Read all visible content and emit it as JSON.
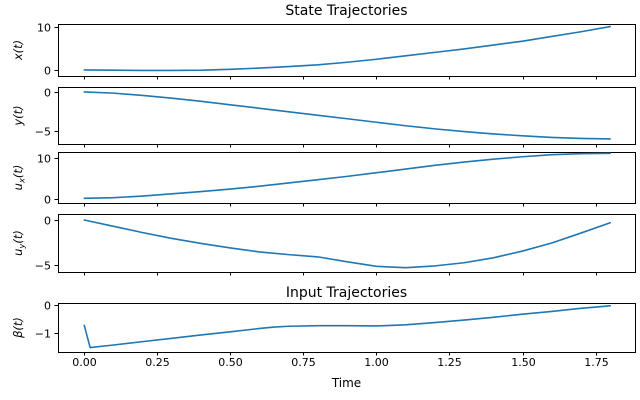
{
  "figure": {
    "title_state": "State Trajectories",
    "title_input": "Input Trajectories",
    "xlabel": "Time",
    "line_color": "#1f77b4",
    "axis_color": "#000000",
    "background": "#ffffff"
  },
  "x_axis": {
    "label": "Time",
    "tick_values": [
      0.0,
      0.25,
      0.5,
      0.75,
      1.0,
      1.25,
      1.5,
      1.75
    ],
    "tick_labels": [
      "0.00",
      "0.25",
      "0.50",
      "0.75",
      "1.00",
      "1.25",
      "1.50",
      "1.75"
    ],
    "xlim": [
      -0.09,
      1.885
    ]
  },
  "chart_data": [
    {
      "type": "line",
      "id": "x",
      "title": "State Trajectories",
      "ylabel": "x(t)",
      "xlim": [
        -0.09,
        1.885
      ],
      "ylim": [
        -1.4,
        10.7
      ],
      "ytick_values": [
        0,
        10
      ],
      "ytick_labels": [
        "0",
        "10"
      ],
      "grid": false,
      "x": [
        0,
        0.1,
        0.2,
        0.3,
        0.4,
        0.5,
        0.6,
        0.7,
        0.8,
        0.9,
        1.0,
        1.1,
        1.2,
        1.3,
        1.4,
        1.5,
        1.6,
        1.7,
        1.8
      ],
      "y": [
        0,
        -0.05,
        -0.1,
        -0.1,
        -0.05,
        0.15,
        0.45,
        0.8,
        1.2,
        1.8,
        2.5,
        3.3,
        4.1,
        4.9,
        5.8,
        6.7,
        7.8,
        8.9,
        10.1
      ]
    },
    {
      "type": "line",
      "id": "y",
      "title": "",
      "ylabel": "y(t)",
      "xlim": [
        -0.09,
        1.885
      ],
      "ylim": [
        -6.7,
        0.64
      ],
      "ytick_values": [
        -5,
        0
      ],
      "ytick_labels": [
        "−5",
        "0"
      ],
      "grid": false,
      "x": [
        0,
        0.1,
        0.2,
        0.3,
        0.4,
        0.5,
        0.6,
        0.7,
        0.8,
        0.9,
        1.0,
        1.1,
        1.2,
        1.3,
        1.4,
        1.5,
        1.6,
        1.7,
        1.8
      ],
      "y": [
        0,
        -0.15,
        -0.45,
        -0.8,
        -1.2,
        -1.65,
        -2.1,
        -2.55,
        -3.0,
        -3.45,
        -3.9,
        -4.35,
        -4.75,
        -5.1,
        -5.4,
        -5.65,
        -5.85,
        -5.98,
        -6.05
      ]
    },
    {
      "type": "line",
      "id": "ux",
      "title": "",
      "ylabel": "u_x(t)",
      "xlim": [
        -0.09,
        1.885
      ],
      "ylim": [
        -1.0,
        11.46
      ],
      "ytick_values": [
        0,
        10
      ],
      "ytick_labels": [
        "0",
        "10"
      ],
      "grid": false,
      "x": [
        0,
        0.1,
        0.2,
        0.3,
        0.4,
        0.5,
        0.6,
        0.7,
        0.8,
        0.9,
        1.0,
        1.1,
        1.2,
        1.3,
        1.4,
        1.5,
        1.6,
        1.7,
        1.8
      ],
      "y": [
        0.15,
        0.3,
        0.7,
        1.25,
        1.8,
        2.4,
        3.1,
        3.9,
        4.7,
        5.5,
        6.4,
        7.3,
        8.2,
        9.0,
        9.7,
        10.3,
        10.8,
        11.05,
        11.15
      ]
    },
    {
      "type": "line",
      "id": "uy",
      "title": "",
      "ylabel": "u_y(t)",
      "xlim": [
        -0.09,
        1.885
      ],
      "ylim": [
        -5.78,
        0.67
      ],
      "ytick_values": [
        -5,
        0
      ],
      "ytick_labels": [
        "−5",
        "0"
      ],
      "grid": false,
      "x": [
        0,
        0.1,
        0.2,
        0.3,
        0.4,
        0.5,
        0.6,
        0.7,
        0.8,
        0.9,
        1.0,
        1.1,
        1.2,
        1.3,
        1.4,
        1.5,
        1.6,
        1.7,
        1.8
      ],
      "y": [
        0,
        -0.7,
        -1.4,
        -2.05,
        -2.6,
        -3.1,
        -3.55,
        -3.85,
        -4.1,
        -4.65,
        -5.15,
        -5.3,
        -5.1,
        -4.75,
        -4.2,
        -3.45,
        -2.55,
        -1.45,
        -0.3
      ]
    },
    {
      "type": "line",
      "id": "beta",
      "title": "Input Trajectories",
      "ylabel": "β(t)",
      "xlim": [
        -0.09,
        1.885
      ],
      "ylim": [
        -1.68,
        0.07
      ],
      "ytick_values": [
        -1,
        0
      ],
      "ytick_labels": [
        "−1",
        "0"
      ],
      "grid": false,
      "x": [
        0,
        0.02,
        0.1,
        0.2,
        0.3,
        0.4,
        0.5,
        0.6,
        0.65,
        0.7,
        0.8,
        0.9,
        1.0,
        1.1,
        1.2,
        1.3,
        1.4,
        1.5,
        1.6,
        1.7,
        1.8
      ],
      "y": [
        -0.73,
        -1.52,
        -1.43,
        -1.31,
        -1.19,
        -1.07,
        -0.96,
        -0.84,
        -0.79,
        -0.76,
        -0.74,
        -0.74,
        -0.75,
        -0.71,
        -0.63,
        -0.54,
        -0.44,
        -0.33,
        -0.23,
        -0.12,
        -0.03
      ]
    }
  ]
}
